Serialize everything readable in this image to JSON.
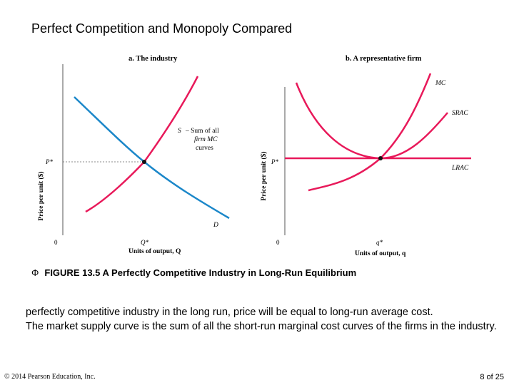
{
  "slide": {
    "title": "Perfect Competition and Monopoly Compared",
    "caption_icon": "phi-bullet-icon",
    "caption_bullet": "Φ",
    "caption": "FIGURE 13.5 A Perfectly Competitive Industry in Long-Run Equilibrium",
    "body_lines": [
      "perfectly competitive industry in the long run, price will be equal to long-run average cost.",
      "The market supply curve is the sum of all the short-run marginal cost curves of the firms in the industry."
    ],
    "copyright": "© 2014 Pearson Education, Inc.",
    "page": "8 of 25"
  },
  "chart_data": [
    {
      "type": "line",
      "title": "a. The industry",
      "xlabel": "Units of output, Q",
      "ylabel": "Price per unit ($)",
      "origin_label": "0",
      "equilibrium": {
        "x_label": "Q*",
        "y_label": "P*"
      },
      "series": [
        {
          "name": "S",
          "label": "S",
          "annotation": [
            "– Sum of all",
            "firm MC",
            "curves"
          ],
          "color": "#e8195a",
          "curve": "supply"
        },
        {
          "name": "D",
          "label": "D",
          "color": "#1b87c9",
          "curve": "demand"
        }
      ],
      "grid": false
    },
    {
      "type": "line",
      "title": "b. A representative firm",
      "xlabel": "Units of output, q",
      "ylabel": "Price per unit ($)",
      "origin_label": "0",
      "equilibrium": {
        "x_label": "q*",
        "y_label": "P*"
      },
      "series": [
        {
          "name": "MC",
          "label": "MC",
          "color": "#e8195a",
          "curve": "marginal-cost"
        },
        {
          "name": "SRAC",
          "label": "SRAC",
          "color": "#e8195a",
          "curve": "u-shape"
        },
        {
          "name": "LRAC",
          "label": "LRAC",
          "color": "#e8195a",
          "curve": "flat"
        }
      ],
      "grid": false
    }
  ]
}
